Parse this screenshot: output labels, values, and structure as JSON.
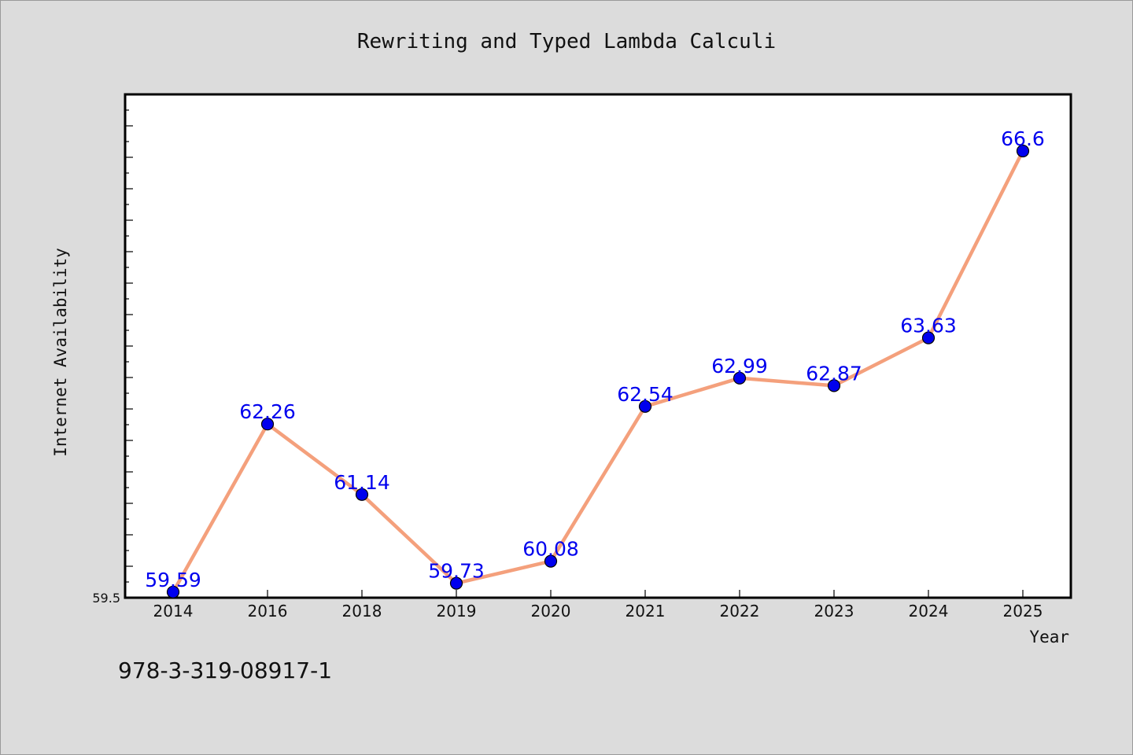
{
  "chart_data": {
    "type": "line",
    "title": "Rewriting and Typed Lambda Calculi",
    "xlabel": "Year",
    "ylabel": "Internet Availability",
    "categories": [
      "2014",
      "2016",
      "2018",
      "2019",
      "2020",
      "2021",
      "2022",
      "2023",
      "2024",
      "2025"
    ],
    "series": [
      {
        "values": [
          59.59,
          62.26,
          61.14,
          59.73,
          60.08,
          62.54,
          62.99,
          62.87,
          63.63,
          66.6
        ],
        "labels": [
          "59.59",
          "62.26",
          "61.14",
          "59.73",
          "60.08",
          "62.54",
          "62.99",
          "62.87",
          "63.63",
          "66.6"
        ]
      }
    ],
    "ylim": [
      59.5,
      67.5
    ],
    "y_tick_labels": [
      "59.5"
    ],
    "grid": false,
    "legend": "none",
    "colors": {
      "line": "#f4a07c",
      "marker": "#0000ee",
      "data_label": "#0000ee",
      "background": "#dcdcdc",
      "plot_background": "#ffffff"
    }
  },
  "footer_text": "978-3-319-08917-1"
}
